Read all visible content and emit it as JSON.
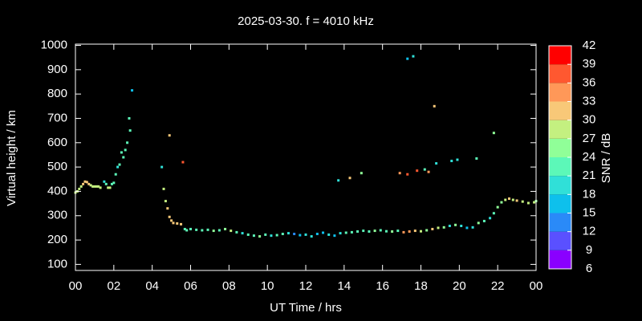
{
  "chart_data": {
    "type": "scatter",
    "title": "2025-03-30. f = 4010 kHz",
    "xlabel": "UT Time / hrs",
    "ylabel": "Virtual height / km",
    "colorbar_label": "SNR / dB",
    "xlim": [
      0,
      24
    ],
    "xticks": [
      {
        "value": 0,
        "label": "00"
      },
      {
        "value": 2,
        "label": "02"
      },
      {
        "value": 4,
        "label": "04"
      },
      {
        "value": 6,
        "label": "06"
      },
      {
        "value": 8,
        "label": "08"
      },
      10,
      12,
      14,
      16,
      18,
      20,
      22,
      {
        "value": 24,
        "label": "00"
      }
    ],
    "ylim": [
      75,
      1005
    ],
    "yticks": [
      100,
      200,
      300,
      400,
      500,
      600,
      700,
      800,
      900,
      1000
    ],
    "clim": [
      6,
      42
    ],
    "cticks": [
      6,
      9,
      12,
      15,
      18,
      21,
      24,
      27,
      30,
      33,
      36,
      39,
      42
    ],
    "colors": [
      "#8a00ff",
      "#5a50ff",
      "#2a8af8",
      "#0ec0ec",
      "#30e0d8",
      "#5cf8b8",
      "#90ff98",
      "#c4f080",
      "#f8c878",
      "#ff9858",
      "#ff5830",
      "#ff0000"
    ],
    "x": [
      0.0,
      0.1,
      0.2,
      0.3,
      0.4,
      0.5,
      0.6,
      0.7,
      0.8,
      0.9,
      1.0,
      1.1,
      1.2,
      1.3,
      1.5,
      1.6,
      1.7,
      1.8,
      1.9,
      2.0,
      2.1,
      2.2,
      2.3,
      2.4,
      2.5,
      2.6,
      2.7,
      2.8,
      2.85,
      2.95,
      4.5,
      4.6,
      4.7,
      4.8,
      4.9,
      4.9,
      5.0,
      5.1,
      5.3,
      5.5,
      5.6,
      5.7,
      5.8,
      6.0,
      6.3,
      6.6,
      6.9,
      7.2,
      7.5,
      7.8,
      8.1,
      8.4,
      8.7,
      9.0,
      9.3,
      9.6,
      9.9,
      10.2,
      10.5,
      10.8,
      11.1,
      11.4,
      11.7,
      12.0,
      12.3,
      12.6,
      12.9,
      13.2,
      13.5,
      13.8,
      14.1,
      14.4,
      14.7,
      15.0,
      15.3,
      15.6,
      15.9,
      16.2,
      16.5,
      16.8,
      17.1,
      17.4,
      17.7,
      18.0,
      18.3,
      18.6,
      18.9,
      19.2,
      19.5,
      19.8,
      20.1,
      20.4,
      20.7,
      21.0,
      21.3,
      21.6,
      21.8,
      22.0,
      22.2,
      22.4,
      22.6,
      22.8,
      23.0,
      23.3,
      23.6,
      23.9,
      24.0,
      13.7,
      14.3,
      14.9,
      16.9,
      17.3,
      17.8,
      18.2,
      18.8,
      19.6,
      19.9,
      20.9,
      21.8,
      17.3,
      17.6,
      18.7,
      18.4
    ],
    "y": [
      395,
      400,
      410,
      420,
      430,
      440,
      438,
      430,
      425,
      420,
      420,
      420,
      420,
      415,
      440,
      430,
      415,
      415,
      430,
      435,
      470,
      500,
      510,
      560,
      540,
      570,
      600,
      700,
      650,
      815,
      500,
      410,
      360,
      330,
      295,
      630,
      280,
      270,
      268,
      265,
      520,
      245,
      240,
      245,
      242,
      240,
      242,
      238,
      240,
      245,
      238,
      232,
      228,
      222,
      218,
      215,
      222,
      218,
      220,
      225,
      228,
      225,
      220,
      222,
      215,
      225,
      230,
      222,
      218,
      228,
      230,
      232,
      235,
      238,
      235,
      238,
      240,
      236,
      235,
      238,
      232,
      235,
      238,
      236,
      240,
      245,
      250,
      252,
      258,
      262,
      258,
      250,
      252,
      270,
      278,
      290,
      310,
      335,
      355,
      365,
      370,
      365,
      362,
      358,
      352,
      355,
      360,
      445,
      455,
      475,
      475,
      470,
      485,
      490,
      515,
      525,
      530,
      535,
      640,
      945,
      955,
      750,
      480
    ],
    "snr": [
      28,
      28,
      29,
      29,
      30,
      31,
      31,
      30,
      29,
      28,
      28,
      27,
      28,
      29,
      20,
      21,
      29,
      28,
      22,
      22,
      22,
      20,
      21,
      21,
      22,
      23,
      21,
      21,
      21,
      16,
      20,
      29,
      29,
      30,
      31,
      32,
      31,
      32,
      31,
      30,
      36,
      22,
      21,
      22,
      23,
      21,
      22,
      24,
      23,
      26,
      27,
      22,
      20,
      21,
      22,
      24,
      21,
      20,
      22,
      21,
      18,
      14,
      16,
      20,
      18,
      16,
      17,
      19,
      17,
      20,
      21,
      22,
      23,
      21,
      22,
      24,
      22,
      23,
      24,
      22,
      33,
      35,
      30,
      27,
      26,
      30,
      28,
      24,
      18,
      25,
      20,
      17,
      19,
      25,
      22,
      20,
      22,
      24,
      26,
      28,
      30,
      29,
      30,
      28,
      27,
      29,
      24,
      20,
      32,
      24,
      35,
      37,
      36,
      22,
      19,
      19,
      19,
      21,
      25,
      16,
      18,
      30,
      35
    ]
  }
}
